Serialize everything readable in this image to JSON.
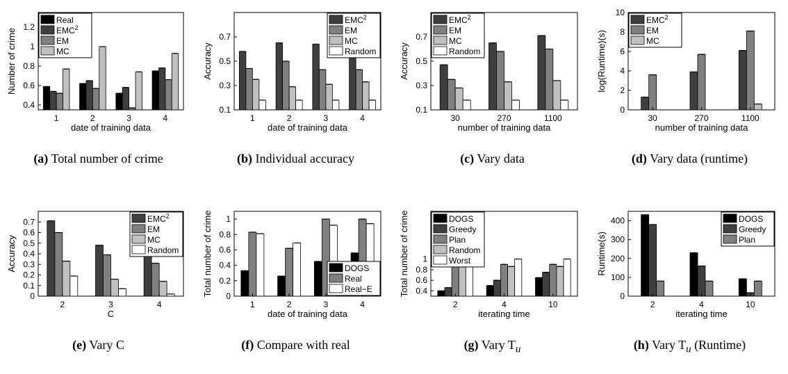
{
  "chart_data": [
    {
      "id": "a",
      "type": "bar",
      "caption_label": "(a)",
      "caption": "Total number of crime",
      "xlabel": "date of training data",
      "ylabel": "Number of crime",
      "categories": [
        "1",
        "2",
        "3",
        "4"
      ],
      "ylim": [
        0.35,
        1.35
      ],
      "yticks": [
        0.4,
        0.6,
        0.8,
        1,
        1.2
      ],
      "legend_position": "top-left",
      "series": [
        {
          "name": "Real",
          "color": "#000000",
          "values": [
            0.59,
            0.62,
            0.52,
            0.75
          ]
        },
        {
          "name": "EMC",
          "name_sup": "2",
          "color": "#3f3f3f",
          "values": [
            0.54,
            0.65,
            0.58,
            0.78
          ]
        },
        {
          "name": "EM",
          "color": "#808080",
          "values": [
            0.52,
            0.57,
            0.37,
            0.66
          ]
        },
        {
          "name": "MC",
          "color": "#c0c0c0",
          "values": [
            0.77,
            1.0,
            0.74,
            0.93
          ]
        }
      ]
    },
    {
      "id": "b",
      "type": "bar",
      "caption_label": "(b)",
      "caption": "Individual accuracy",
      "xlabel": "date of training data",
      "ylabel": "Accuracy",
      "categories": [
        "1",
        "2",
        "3",
        "4"
      ],
      "ylim": [
        0.1,
        0.9
      ],
      "yticks": [
        0.1,
        0.3,
        0.5,
        0.7
      ],
      "legend_position": "top-right",
      "series": [
        {
          "name": "EMC",
          "name_sup": "2",
          "color": "#3f3f3f",
          "values": [
            0.58,
            0.65,
            0.64,
            0.62
          ]
        },
        {
          "name": "EM",
          "color": "#808080",
          "values": [
            0.44,
            0.5,
            0.43,
            0.43
          ]
        },
        {
          "name": "MC",
          "color": "#c0c0c0",
          "values": [
            0.35,
            0.29,
            0.31,
            0.33
          ]
        },
        {
          "name": "Random",
          "color": "#ffffff",
          "values": [
            0.18,
            0.18,
            0.18,
            0.18
          ]
        }
      ]
    },
    {
      "id": "c",
      "type": "bar",
      "caption_label": "(c)",
      "caption": "Vary data",
      "xlabel": "number of training data",
      "ylabel": "Accuracy",
      "categories": [
        "30",
        "270",
        "1100"
      ],
      "ylim": [
        0.1,
        0.9
      ],
      "yticks": [
        0.1,
        0.3,
        0.5,
        0.7
      ],
      "legend_position": "top-left",
      "series": [
        {
          "name": "EMC",
          "name_sup": "2",
          "color": "#3f3f3f",
          "values": [
            0.47,
            0.65,
            0.71
          ]
        },
        {
          "name": "EM",
          "color": "#808080",
          "values": [
            0.35,
            0.58,
            0.6
          ]
        },
        {
          "name": "MC",
          "color": "#c0c0c0",
          "values": [
            0.28,
            0.33,
            0.34
          ]
        },
        {
          "name": "Random",
          "color": "#ffffff",
          "values": [
            0.18,
            0.18,
            0.18
          ]
        }
      ]
    },
    {
      "id": "d",
      "type": "bar",
      "caption_label": "(d)",
      "caption": "Vary data (runtime)",
      "xlabel": "number of training data",
      "ylabel": "log(Runtime)(s)",
      "categories": [
        "30",
        "270",
        "1100"
      ],
      "ylim": [
        0,
        10
      ],
      "yticks": [
        0,
        2,
        4,
        6,
        8,
        10
      ],
      "legend_position": "top-left",
      "series": [
        {
          "name": "EMC",
          "name_sup": "2",
          "color": "#3f3f3f",
          "values": [
            1.3,
            3.9,
            6.1
          ]
        },
        {
          "name": "EM",
          "color": "#808080",
          "values": [
            3.6,
            5.7,
            8.1
          ]
        },
        {
          "name": "MC",
          "color": "#c0c0c0",
          "values": [
            0,
            0,
            0.6
          ]
        }
      ]
    },
    {
      "id": "e",
      "type": "bar",
      "caption_label": "(e)",
      "caption": "Vary C",
      "xlabel": "C",
      "ylabel": "Accuracy",
      "categories": [
        "2",
        "3",
        "4"
      ],
      "ylim": [
        0,
        0.8
      ],
      "yticks": [
        0,
        0.1,
        0.2,
        0.3,
        0.4,
        0.5,
        0.6,
        0.7
      ],
      "legend_position": "top-right",
      "series": [
        {
          "name": "EMC",
          "name_sup": "2",
          "color": "#3f3f3f",
          "values": [
            0.71,
            0.48,
            0.4
          ]
        },
        {
          "name": "EM",
          "color": "#808080",
          "values": [
            0.6,
            0.39,
            0.31
          ]
        },
        {
          "name": "MC",
          "color": "#c0c0c0",
          "values": [
            0.33,
            0.16,
            0.14
          ]
        },
        {
          "name": "Random",
          "color": "#ffffff",
          "values": [
            0.19,
            0.07,
            0.02
          ]
        }
      ]
    },
    {
      "id": "f",
      "type": "bar",
      "caption_label": "(f)",
      "caption": "Compare with real",
      "xlabel": "date of training data",
      "ylabel": "Total number of crime",
      "categories": [
        "1",
        "2",
        "3",
        "4"
      ],
      "ylim": [
        0,
        1.1
      ],
      "yticks": [
        0,
        0.2,
        0.4,
        0.6,
        0.8,
        1
      ],
      "legend_position": "bottom-right",
      "series": [
        {
          "name": "DOGS",
          "color": "#000000",
          "values": [
            0.33,
            0.26,
            0.45,
            0.56
          ]
        },
        {
          "name": "Real",
          "color": "#808080",
          "values": [
            0.83,
            0.62,
            1.0,
            1.0
          ]
        },
        {
          "name": "Real−E",
          "color": "#ffffff",
          "values": [
            0.81,
            0.69,
            0.92,
            0.94
          ]
        }
      ]
    },
    {
      "id": "g",
      "type": "bar",
      "caption_label": "(g)",
      "caption": "Vary T",
      "caption_sub": "u",
      "xlabel": "iterating time",
      "ylabel": "Total number of crime",
      "categories": [
        "2",
        "4",
        "10"
      ],
      "ylim": [
        0.3,
        1.9
      ],
      "yticks": [
        0.4,
        0.6,
        0.8,
        1
      ],
      "legend_position": "top-left",
      "series": [
        {
          "name": "DOGS",
          "color": "#000000",
          "values": [
            0.4,
            0.5,
            0.65
          ]
        },
        {
          "name": "Greedy",
          "color": "#3f3f3f",
          "values": [
            0.46,
            0.6,
            0.75
          ]
        },
        {
          "name": "Plan",
          "color": "#808080",
          "values": [
            0.9,
            0.9,
            0.9
          ]
        },
        {
          "name": "Random",
          "color": "#c0c0c0",
          "values": [
            0.86,
            0.86,
            0.86
          ]
        },
        {
          "name": "Worst",
          "color": "#ffffff",
          "values": [
            1.0,
            1.0,
            1.0
          ]
        }
      ]
    },
    {
      "id": "h",
      "type": "bar",
      "caption_label": "(h)",
      "caption": "Vary T",
      "caption_sub": "u",
      "caption_suffix": "(Runtime)",
      "xlabel": "iterating time",
      "ylabel": "Runtime(s)",
      "categories": [
        "2",
        "4",
        "10"
      ],
      "ylim": [
        0,
        450
      ],
      "yticks": [
        0,
        100,
        200,
        300,
        400
      ],
      "legend_position": "top-right",
      "series": [
        {
          "name": "DOGS",
          "color": "#000000",
          "values": [
            432,
            230,
            92
          ]
        },
        {
          "name": "Greedy",
          "color": "#3f3f3f",
          "values": [
            380,
            160,
            18
          ]
        },
        {
          "name": "Plan",
          "color": "#808080",
          "values": [
            80,
            80,
            80
          ]
        }
      ]
    }
  ]
}
